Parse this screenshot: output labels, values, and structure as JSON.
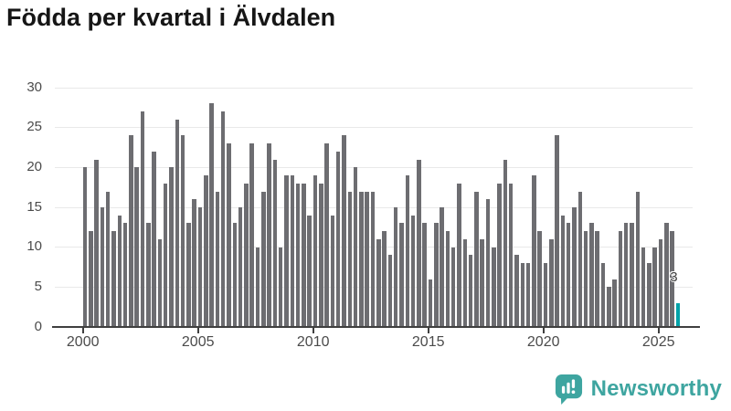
{
  "title": "Födda per kvartal i Älvdalen",
  "footer": {
    "brand": "Newsworthy"
  },
  "colors": {
    "bar": "#6d6d71",
    "highlight_bar": "#00a2a8",
    "brand_teal": "#3ea5a0",
    "axis": "#3f3f3f",
    "grid": "#e9e9e9",
    "tick_text": "#4b4b4b",
    "title_text": "#161616",
    "data_label_text": "#3d3d3d"
  },
  "chart_data": {
    "type": "bar",
    "title": "Födda per kvartal i Älvdalen",
    "xlabel": "",
    "ylabel": "",
    "x_tick_labels": [
      "2000",
      "2005",
      "2010",
      "2015",
      "2020",
      "2025"
    ],
    "y_ticks": [
      0,
      5,
      10,
      15,
      20,
      25,
      30
    ],
    "ylim": [
      0,
      30
    ],
    "grid": "horizontal",
    "legend": "none",
    "highlight_last_bar": true,
    "data_label": "3",
    "quarters": [
      {
        "year": 2000,
        "values": [
          20,
          12,
          21,
          15
        ]
      },
      {
        "year": 2001,
        "values": [
          17,
          12,
          14,
          13
        ]
      },
      {
        "year": 2002,
        "values": [
          24,
          20,
          27,
          13
        ]
      },
      {
        "year": 2003,
        "values": [
          22,
          11,
          18,
          20
        ]
      },
      {
        "year": 2004,
        "values": [
          26,
          24,
          13,
          16
        ]
      },
      {
        "year": 2005,
        "values": [
          15,
          19,
          28,
          17
        ]
      },
      {
        "year": 2006,
        "values": [
          27,
          23,
          13,
          15
        ]
      },
      {
        "year": 2007,
        "values": [
          18,
          23,
          10,
          17
        ]
      },
      {
        "year": 2008,
        "values": [
          23,
          21,
          10,
          19
        ]
      },
      {
        "year": 2009,
        "values": [
          19,
          18,
          18,
          14
        ]
      },
      {
        "year": 2010,
        "values": [
          19,
          18,
          23,
          14
        ]
      },
      {
        "year": 2011,
        "values": [
          22,
          24,
          17,
          20
        ]
      },
      {
        "year": 2012,
        "values": [
          17,
          17,
          17,
          11
        ]
      },
      {
        "year": 2013,
        "values": [
          12,
          9,
          15,
          13
        ]
      },
      {
        "year": 2014,
        "values": [
          19,
          14,
          21,
          13
        ]
      },
      {
        "year": 2015,
        "values": [
          6,
          13,
          15,
          12
        ]
      },
      {
        "year": 2016,
        "values": [
          10,
          18,
          11,
          9
        ]
      },
      {
        "year": 2017,
        "values": [
          17,
          11,
          16,
          10
        ]
      },
      {
        "year": 2018,
        "values": [
          18,
          21,
          18,
          9
        ]
      },
      {
        "year": 2019,
        "values": [
          8,
          8,
          19,
          12
        ]
      },
      {
        "year": 2020,
        "values": [
          8,
          11,
          24,
          14
        ]
      },
      {
        "year": 2021,
        "values": [
          13,
          15,
          17,
          12
        ]
      },
      {
        "year": 2022,
        "values": [
          13,
          12,
          8,
          5
        ]
      },
      {
        "year": 2023,
        "values": [
          6,
          12,
          13,
          13
        ]
      },
      {
        "year": 2024,
        "values": [
          17,
          10,
          8,
          10
        ]
      },
      {
        "year": 2025,
        "values": [
          11,
          13,
          12,
          3
        ]
      }
    ]
  }
}
